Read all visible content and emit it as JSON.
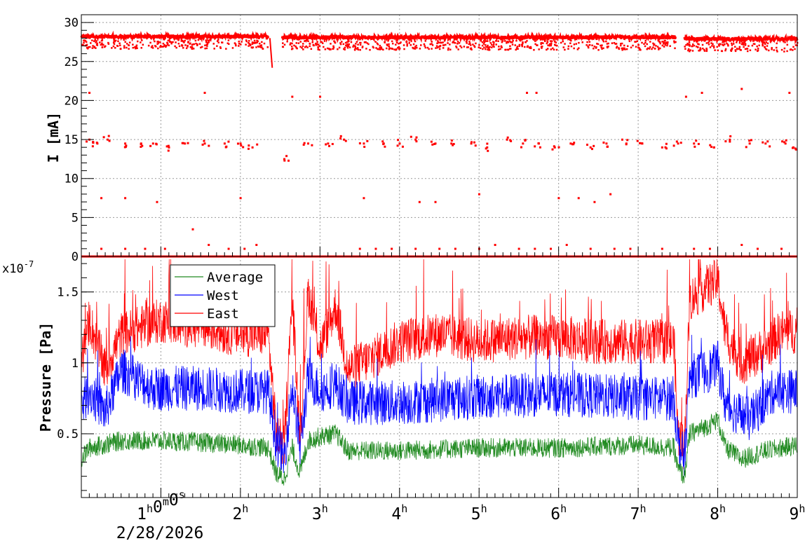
{
  "chart_data": [
    {
      "type": "scatter",
      "title": "",
      "ylabel": "I [mA]",
      "ylim": [
        0,
        31
      ],
      "yticks": [
        0,
        5,
        10,
        15,
        20,
        25,
        30
      ],
      "ytick_labels": [
        "0",
        "5",
        "10",
        "15",
        "20",
        "25",
        "30"
      ],
      "xlim_hours": [
        0.0,
        9.0
      ],
      "grid": true,
      "color": "#ff0000",
      "series": [
        {
          "segments": [
            {
              "x_start": 0.0,
              "x_end": 2.35,
              "level": 28.2
            },
            {
              "x_start": 2.37,
              "x_end": 2.4,
              "level_start": 28.0,
              "level_end": 24.2
            },
            {
              "x_start": 2.52,
              "x_end": 7.47,
              "level": 28.1
            },
            {
              "x_start": 7.58,
              "x_end": 9.0,
              "level": 27.9
            },
            {
              "x_start": 0.0,
              "x_end": 9.0,
              "level": 0.0
            }
          ],
          "outliers_x": [
            0.1,
            0.2,
            0.33,
            0.55,
            0.75,
            0.9,
            1.1,
            1.3,
            1.55,
            1.8,
            2.0,
            2.15,
            2.55,
            2.85,
            3.1,
            3.3,
            3.55,
            3.8,
            4.0,
            4.2,
            4.45,
            4.65,
            4.9,
            5.1,
            5.35,
            5.55,
            5.75,
            5.95,
            6.15,
            6.4,
            6.6,
            6.85,
            7.05,
            7.3,
            7.5,
            7.7,
            7.95,
            8.15,
            8.4,
            8.6,
            8.85,
            8.95
          ],
          "outliers_y": [
            15.0,
            14.5,
            15.0,
            14.5,
            14.5,
            14.5,
            14.0,
            14.5,
            14.5,
            14.5,
            14.5,
            14.0,
            12.5,
            14.5,
            14.5,
            15.0,
            14.5,
            14.5,
            14.5,
            15.0,
            14.5,
            14.5,
            14.5,
            14.0,
            15.0,
            14.5,
            14.5,
            14.0,
            14.5,
            14.0,
            14.5,
            14.5,
            14.5,
            14.0,
            14.5,
            14.5,
            14.0,
            15.0,
            14.5,
            14.5,
            14.5,
            14.0
          ],
          "outliers2_x": [
            0.1,
            0.25,
            0.55,
            0.95,
            1.55,
            2.0,
            2.65,
            3.0,
            3.55,
            4.25,
            4.45,
            5.0,
            5.6,
            5.72,
            6.0,
            6.25,
            6.45,
            6.65,
            7.6,
            7.8,
            8.3,
            8.9
          ],
          "outliers2_y": [
            21.0,
            7.5,
            7.5,
            7.0,
            21.0,
            7.5,
            20.5,
            20.5,
            7.5,
            7.0,
            7.0,
            8.0,
            21.0,
            21.0,
            7.5,
            7.5,
            7.0,
            8.0,
            20.5,
            21.0,
            21.5,
            21.0
          ],
          "low_x": [
            0.25,
            0.55,
            0.8,
            1.05,
            1.4,
            1.6,
            1.85,
            2.05,
            2.2,
            3.5,
            3.7,
            3.9,
            4.2,
            4.5,
            4.7,
            5.0,
            5.2,
            5.5,
            5.7,
            5.9,
            6.1,
            6.4,
            6.7,
            6.9,
            7.3,
            7.7,
            7.9,
            8.3,
            8.5,
            8.8
          ],
          "low_y": [
            1.0,
            1.0,
            1.0,
            1.0,
            3.5,
            1.5,
            1.0,
            1.0,
            1.5,
            1.0,
            1.0,
            1.0,
            1.0,
            1.0,
            1.0,
            1.0,
            1.5,
            1.0,
            1.0,
            1.0,
            1.5,
            1.0,
            1.0,
            1.0,
            1.0,
            1.0,
            1.0,
            1.5,
            1.0,
            1.0
          ]
        }
      ]
    },
    {
      "type": "line",
      "title": "",
      "ylabel": "Pressure [Pa]",
      "yaxis_multiplier": "x10",
      "yaxis_exponent": "-7",
      "ylim": [
        0.05,
        1.75
      ],
      "yticks": [
        0.5,
        1.0,
        1.5
      ],
      "ytick_labels": [
        "0.5",
        "1",
        "1.5"
      ],
      "xlim_hours": [
        0.0,
        9.0
      ],
      "x_tick_hours": [
        1,
        2,
        3,
        4,
        5,
        6,
        7,
        8,
        9
      ],
      "x_tick_labels": [
        {
          "num": "1",
          "parts": [
            {
              "t": "1",
              "s": false
            },
            {
              "t": "h",
              "s": true
            },
            {
              "t": "0",
              "s": false
            },
            {
              "t": "m",
              "s": true
            },
            {
              "t": "0",
              "s": false
            },
            {
              "t": "s",
              "s": true
            }
          ]
        },
        {
          "num": "2",
          "parts": [
            {
              "t": "2",
              "s": false
            },
            {
              "t": "h",
              "s": true
            }
          ]
        },
        {
          "num": "3",
          "parts": [
            {
              "t": "3",
              "s": false
            },
            {
              "t": "h",
              "s": true
            }
          ]
        },
        {
          "num": "4",
          "parts": [
            {
              "t": "4",
              "s": false
            },
            {
              "t": "h",
              "s": true
            }
          ]
        },
        {
          "num": "5",
          "parts": [
            {
              "t": "5",
              "s": false
            },
            {
              "t": "h",
              "s": true
            }
          ]
        },
        {
          "num": "6",
          "parts": [
            {
              "t": "6",
              "s": false
            },
            {
              "t": "h",
              "s": true
            }
          ]
        },
        {
          "num": "7",
          "parts": [
            {
              "t": "7",
              "s": false
            },
            {
              "t": "h",
              "s": true
            }
          ]
        },
        {
          "num": "8",
          "parts": [
            {
              "t": "8",
              "s": false
            },
            {
              "t": "h",
              "s": true
            }
          ]
        },
        {
          "num": "9",
          "parts": [
            {
              "t": "9",
              "s": false
            },
            {
              "t": "h",
              "s": true
            }
          ]
        }
      ],
      "x_date_label": "2/28/2026",
      "grid": true,
      "legend_position": "top-left",
      "series": [
        {
          "name": "Average",
          "color": "#228b22",
          "baseline": 0.4,
          "noise": 0.07,
          "keypoints": [
            [
              0.0,
              0.32
            ],
            [
              0.1,
              0.4
            ],
            [
              0.5,
              0.45
            ],
            [
              1.0,
              0.45
            ],
            [
              1.5,
              0.44
            ],
            [
              2.0,
              0.42
            ],
            [
              2.35,
              0.4
            ],
            [
              2.45,
              0.22
            ],
            [
              2.55,
              0.18
            ],
            [
              2.65,
              0.4
            ],
            [
              2.75,
              0.22
            ],
            [
              2.85,
              0.45
            ],
            [
              3.0,
              0.48
            ],
            [
              3.2,
              0.5
            ],
            [
              3.35,
              0.38
            ],
            [
              4.0,
              0.38
            ],
            [
              5.0,
              0.4
            ],
            [
              6.0,
              0.4
            ],
            [
              7.0,
              0.42
            ],
            [
              7.45,
              0.4
            ],
            [
              7.5,
              0.25
            ],
            [
              7.58,
              0.2
            ],
            [
              7.65,
              0.5
            ],
            [
              7.85,
              0.55
            ],
            [
              8.0,
              0.6
            ],
            [
              8.1,
              0.4
            ],
            [
              8.3,
              0.32
            ],
            [
              8.6,
              0.38
            ],
            [
              9.0,
              0.42
            ]
          ]
        },
        {
          "name": "West",
          "color": "#0000ff",
          "baseline": 0.8,
          "noise": 0.16,
          "keypoints": [
            [
              0.0,
              0.7
            ],
            [
              0.1,
              0.8
            ],
            [
              0.3,
              0.65
            ],
            [
              0.5,
              0.95
            ],
            [
              0.9,
              0.82
            ],
            [
              1.5,
              0.82
            ],
            [
              2.0,
              0.8
            ],
            [
              2.35,
              0.8
            ],
            [
              2.45,
              0.45
            ],
            [
              2.55,
              0.32
            ],
            [
              2.65,
              0.85
            ],
            [
              2.75,
              0.4
            ],
            [
              2.85,
              0.9
            ],
            [
              3.0,
              0.8
            ],
            [
              3.2,
              0.85
            ],
            [
              3.35,
              0.72
            ],
            [
              4.0,
              0.72
            ],
            [
              5.0,
              0.76
            ],
            [
              6.0,
              0.78
            ],
            [
              7.0,
              0.75
            ],
            [
              7.45,
              0.75
            ],
            [
              7.5,
              0.45
            ],
            [
              7.58,
              0.32
            ],
            [
              7.65,
              0.9
            ],
            [
              7.9,
              0.95
            ],
            [
              8.0,
              1.0
            ],
            [
              8.1,
              0.7
            ],
            [
              8.4,
              0.6
            ],
            [
              8.7,
              0.8
            ],
            [
              9.0,
              0.8
            ]
          ]
        },
        {
          "name": "East",
          "color": "#ff0000",
          "baseline": 1.2,
          "noise": 0.16,
          "keypoints": [
            [
              0.0,
              1.0
            ],
            [
              0.1,
              1.3
            ],
            [
              0.3,
              0.95
            ],
            [
              0.5,
              1.2
            ],
            [
              1.0,
              1.3
            ],
            [
              1.5,
              1.25
            ],
            [
              2.0,
              1.2
            ],
            [
              2.35,
              1.2
            ],
            [
              2.45,
              0.5
            ],
            [
              2.55,
              0.4
            ],
            [
              2.65,
              1.45
            ],
            [
              2.75,
              0.45
            ],
            [
              2.85,
              1.5
            ],
            [
              3.0,
              1.1
            ],
            [
              3.2,
              1.4
            ],
            [
              3.35,
              0.95
            ],
            [
              3.7,
              1.05
            ],
            [
              4.0,
              1.15
            ],
            [
              4.5,
              1.2
            ],
            [
              5.0,
              1.15
            ],
            [
              5.5,
              1.18
            ],
            [
              6.0,
              1.18
            ],
            [
              6.5,
              1.15
            ],
            [
              7.0,
              1.15
            ],
            [
              7.45,
              1.15
            ],
            [
              7.5,
              0.5
            ],
            [
              7.58,
              0.4
            ],
            [
              7.65,
              1.45
            ],
            [
              7.9,
              1.55
            ],
            [
              8.0,
              1.58
            ],
            [
              8.1,
              1.2
            ],
            [
              8.3,
              1.0
            ],
            [
              8.6,
              1.1
            ],
            [
              8.8,
              1.22
            ],
            [
              9.0,
              1.22
            ]
          ]
        }
      ]
    }
  ]
}
